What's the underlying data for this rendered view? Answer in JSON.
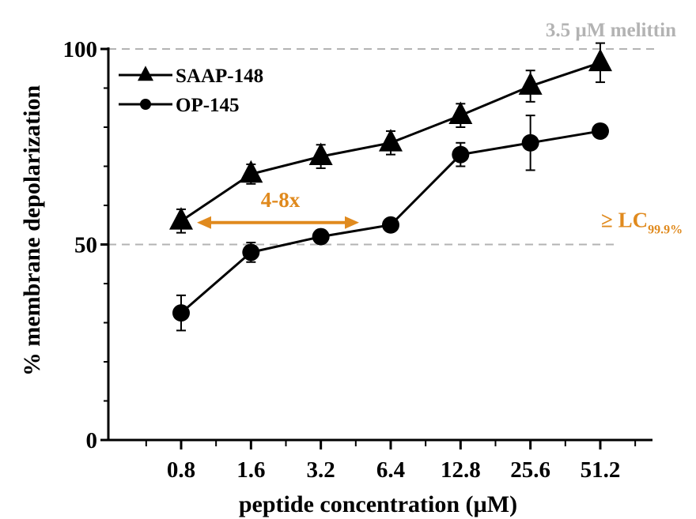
{
  "chart_data": {
    "type": "line",
    "xlabel": "peptide concentration (µM)",
    "ylabel": "% membrane depolarization",
    "categories": [
      "0.8",
      "1.6",
      "3.2",
      "6.4",
      "12.8",
      "25.6",
      "51.2"
    ],
    "ylim": [
      0,
      100
    ],
    "yticks": [
      0,
      50,
      100
    ],
    "grid": false,
    "legend_position": "top-left",
    "series": [
      {
        "name": "SAAP-148",
        "marker": "triangle",
        "values": [
          56,
          68,
          72.5,
          76,
          83,
          90.5,
          96.5
        ],
        "errors": [
          3,
          2.5,
          3,
          3,
          3,
          4,
          5
        ]
      },
      {
        "name": "OP-145",
        "marker": "circle",
        "values": [
          32.5,
          48,
          52,
          55,
          73,
          76,
          79
        ],
        "errors": [
          4.5,
          2.5,
          1,
          1,
          3,
          7,
          1
        ]
      }
    ],
    "reference_lines": [
      {
        "y": 100,
        "label": "3.5 µM melittin",
        "color": "#b3b3b3"
      },
      {
        "y": 50,
        "label_main": "≥ LC",
        "label_sub": "99.9%",
        "color": "#b3b3b3",
        "label_color": "#e08a1e"
      }
    ],
    "annotation": {
      "label": "4-8x",
      "color": "#e08a1e",
      "y": 56,
      "x_from_index": 0,
      "x_to_index": 3
    }
  }
}
